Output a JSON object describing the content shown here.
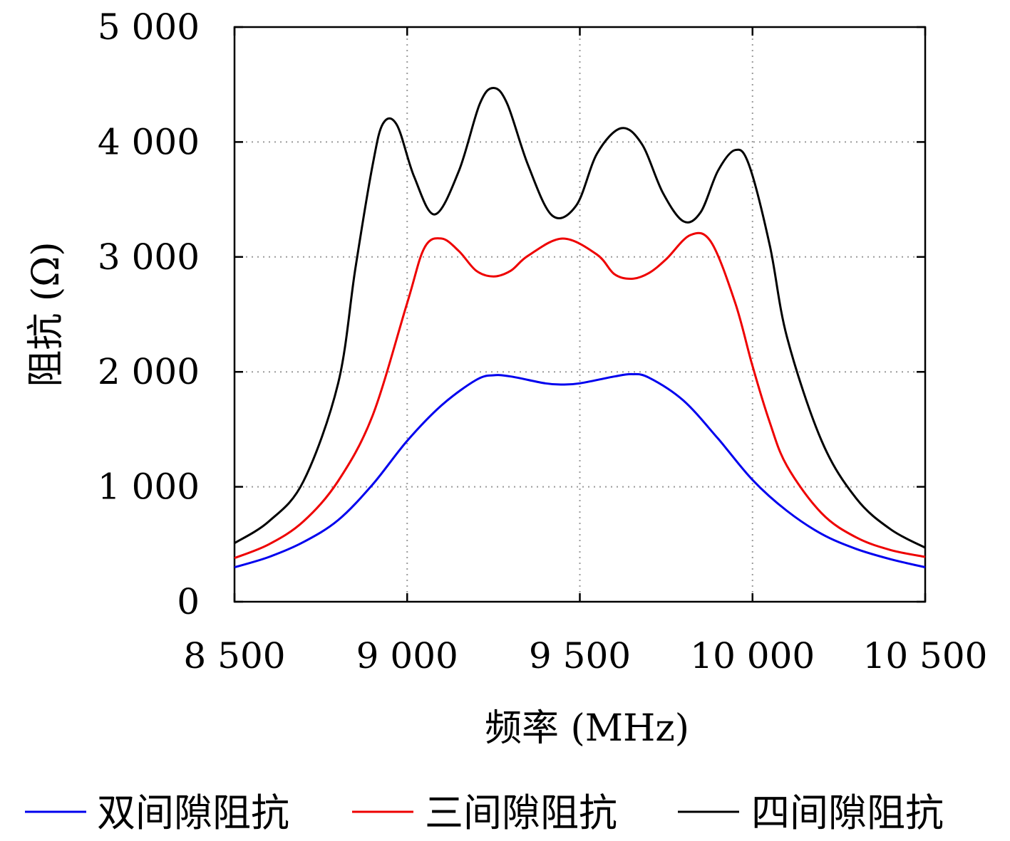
{
  "chart_data": {
    "type": "line",
    "xlabel": "频率 (MHz)",
    "ylabel": "阻抗 (Ω)",
    "xlim": [
      8500,
      10500
    ],
    "ylim": [
      0,
      5000
    ],
    "grid": true,
    "legend_position": "bottom",
    "x_ticks": [
      8500,
      9000,
      9500,
      10000,
      10500
    ],
    "x_tick_labels": [
      "8 500",
      "9 000",
      "9 500",
      "10 000",
      "10 500"
    ],
    "y_ticks": [
      0,
      1000,
      2000,
      3000,
      4000,
      5000
    ],
    "y_tick_labels": [
      "0",
      "1 000",
      "2 000",
      "3 000",
      "4 000",
      "5 000"
    ],
    "series": [
      {
        "name": "双间隙阻抗",
        "color": "#0000ee",
        "x": [
          8500,
          8600,
          8700,
          8800,
          8900,
          9000,
          9100,
          9200,
          9250,
          9300,
          9400,
          9450,
          9500,
          9600,
          9650,
          9700,
          9800,
          9900,
          10000,
          10100,
          10200,
          10300,
          10400,
          10500
        ],
        "y": [
          300,
          390,
          520,
          710,
          1020,
          1400,
          1710,
          1930,
          1970,
          1960,
          1900,
          1890,
          1900,
          1960,
          1980,
          1950,
          1750,
          1420,
          1060,
          790,
          590,
          460,
          370,
          300
        ]
      },
      {
        "name": "三间隙阻抗",
        "color": "#ee0000",
        "x": [
          8500,
          8600,
          8700,
          8800,
          8900,
          9000,
          9050,
          9100,
          9150,
          9200,
          9250,
          9300,
          9350,
          9450,
          9550,
          9600,
          9650,
          9700,
          9750,
          9820,
          9880,
          9950,
          10000,
          10050,
          10100,
          10200,
          10300,
          10400,
          10500
        ],
        "y": [
          380,
          500,
          700,
          1050,
          1620,
          2600,
          3080,
          3160,
          3050,
          2880,
          2830,
          2880,
          3010,
          3160,
          3020,
          2850,
          2810,
          2860,
          2980,
          3190,
          3130,
          2600,
          2050,
          1560,
          1180,
          770,
          560,
          450,
          390
        ]
      },
      {
        "name": "四间隙阻抗",
        "color": "#000000",
        "x": [
          8500,
          8600,
          8700,
          8800,
          8850,
          8900,
          8930,
          8970,
          9020,
          9080,
          9150,
          9210,
          9250,
          9290,
          9350,
          9420,
          9490,
          9550,
          9620,
          9680,
          9740,
          9800,
          9850,
          9900,
          9950,
          9990,
          10050,
          10100,
          10200,
          10300,
          10400,
          10500
        ],
        "y": [
          510,
          700,
          1050,
          1900,
          2900,
          3800,
          4160,
          4150,
          3700,
          3370,
          3750,
          4330,
          4470,
          4330,
          3800,
          3360,
          3450,
          3900,
          4120,
          3980,
          3560,
          3310,
          3390,
          3750,
          3930,
          3800,
          3100,
          2300,
          1400,
          900,
          630,
          470
        ]
      }
    ]
  }
}
